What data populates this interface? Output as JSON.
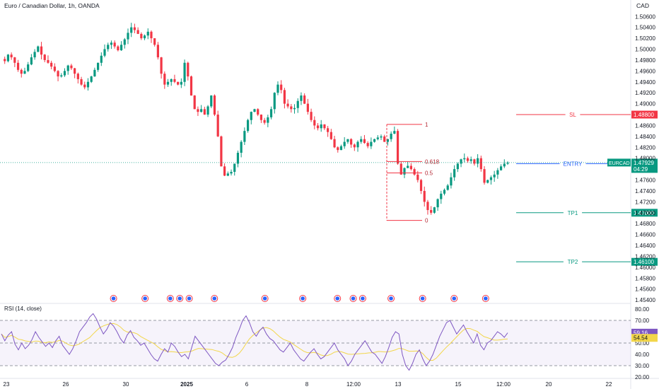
{
  "header": {
    "title": "Euro / Canadian Dollar, 1h, OANDA",
    "currency": "CAD"
  },
  "chart_data": {
    "type": "candlestick",
    "title": "Euro / Canadian Dollar, 1h, OANDA",
    "price_axis": {
      "ticks": [
        "1.50600",
        "1.50400",
        "1.50200",
        "1.50000",
        "1.49800",
        "1.49600",
        "1.49400",
        "1.49200",
        "1.49000",
        "1.48600",
        "1.48400",
        "1.48200",
        "1.48000",
        "1.47600",
        "1.47400",
        "1.47200",
        "1.47000",
        "1.46800",
        "1.46600",
        "1.46400",
        "1.46200",
        "1.46000",
        "1.45800",
        "1.45600",
        "1.45400"
      ],
      "range": [
        1.4535,
        1.5072
      ]
    },
    "time_axis": {
      "labels": [
        {
          "label": "23",
          "x": 0
        },
        {
          "label": "26",
          "x": 1
        },
        {
          "label": "30",
          "x": 2
        },
        {
          "label": "2025",
          "x": 3
        },
        {
          "label": "6",
          "x": 4
        },
        {
          "label": "8",
          "x": 5
        },
        {
          "label": "12:00",
          "x": 6
        },
        {
          "label": "13",
          "x": 7
        },
        {
          "label": "15",
          "x": 8
        },
        {
          "label": "12:00",
          "x": 9
        },
        {
          "label": "20",
          "x": 10
        },
        {
          "label": "22",
          "x": 11
        }
      ]
    },
    "price_path": [
      1.4982,
      1.4978,
      1.499,
      1.4985,
      1.4975,
      1.4962,
      1.4955,
      1.496,
      1.4972,
      1.4985,
      1.4995,
      1.5005,
      1.499,
      1.498,
      1.4975,
      1.4968,
      1.496,
      1.495,
      1.4952,
      1.496,
      1.497,
      1.4965,
      1.4955,
      1.4945,
      1.4935,
      1.493,
      1.494,
      1.495,
      1.4962,
      1.4975,
      1.4988,
      1.5,
      1.5008,
      1.5012,
      1.5005,
      1.4998,
      1.5008,
      1.5018,
      1.503,
      1.504,
      1.5035,
      1.5028,
      1.502,
      1.5025,
      1.5032,
      1.502,
      1.5008,
      1.4985,
      1.4955,
      1.4935,
      1.494,
      1.4945,
      1.494,
      1.4935,
      1.494,
      1.4975,
      1.495,
      1.4915,
      1.489,
      1.4885,
      1.489,
      1.488,
      1.4895,
      1.4915,
      1.488,
      1.484,
      1.4785,
      1.4768,
      1.4772,
      1.4775,
      1.479,
      1.481,
      1.483,
      1.485,
      1.487,
      1.4885,
      1.489,
      1.488,
      1.487,
      1.4865,
      1.4875,
      1.489,
      1.492,
      1.4935,
      1.4925,
      1.49,
      1.4895,
      1.489,
      1.4892,
      1.4905,
      1.4915,
      1.49,
      1.4885,
      1.487,
      1.486,
      1.4855,
      1.4862,
      1.4855,
      1.4848,
      1.4835,
      1.482,
      1.4815,
      1.4822,
      1.483,
      1.4835,
      1.4825,
      1.482,
      1.483,
      1.4835,
      1.4828,
      1.4822,
      1.483,
      1.4835,
      1.4838,
      1.484,
      1.483,
      1.4835,
      1.4845,
      1.485,
      1.479,
      1.477,
      1.4782,
      1.4786,
      1.478,
      1.477,
      1.476,
      1.474,
      1.472,
      1.4705,
      1.47,
      1.471,
      1.4725,
      1.4735,
      1.4742,
      1.475,
      1.4765,
      1.478,
      1.479,
      1.4798,
      1.48,
      1.4795,
      1.4798,
      1.479,
      1.48,
      1.478,
      1.4755,
      1.476,
      1.4765,
      1.477,
      1.4778,
      1.4785,
      1.479,
      1.4792
    ],
    "last_price": 1.4792,
    "fibonacci": [
      {
        "level": "1",
        "price": 1.4862
      },
      {
        "level": "0.618",
        "price": 1.4794
      },
      {
        "level": "0.5",
        "price": 1.4773
      },
      {
        "level": "0",
        "price": 1.4686
      }
    ],
    "levels": [
      {
        "name": "SL",
        "price": 1.488,
        "price_label": "1.48800",
        "color": "#f23645"
      },
      {
        "name": "ENTRY",
        "price": 1.479,
        "price_label": "1.47900",
        "color": "#2962ff"
      },
      {
        "name": "TP1",
        "price": 1.47,
        "price_label": "1.47000",
        "color": "#089981"
      },
      {
        "name": "TP2",
        "price": 1.461,
        "price_label": "1.46100",
        "color": "#089981"
      }
    ],
    "current_price_tag": {
      "symbol": "EURCAD",
      "price": "1.47929",
      "countdown": "04:29",
      "color": "#089981"
    },
    "rsi": {
      "title": "RSI (14, close)",
      "ticks": [
        "80.00",
        "70.00",
        "60.00",
        "50.00",
        "40.00",
        "30.00",
        "20.00"
      ],
      "range": [
        20,
        80
      ],
      "band_upper": 70,
      "band_lower": 30,
      "middle": 50,
      "value": "59.16",
      "ma_value": "54.54",
      "line_color": "#7e57c2",
      "ma_color": "#f2d64a",
      "values": [
        58,
        52,
        57,
        60,
        49,
        44,
        50,
        45,
        48,
        53,
        60,
        55,
        51,
        47,
        50,
        46,
        52,
        56,
        48,
        44,
        40,
        45,
        52,
        60,
        64,
        68,
        73,
        76,
        71,
        64,
        58,
        62,
        68,
        65,
        60,
        54,
        50,
        57,
        61,
        55,
        52,
        48,
        50,
        45,
        40,
        36,
        34,
        40,
        45,
        42,
        50,
        47,
        42,
        38,
        40,
        36,
        46,
        56,
        52,
        48,
        44,
        40,
        36,
        32,
        30,
        33,
        35,
        40,
        46,
        55,
        62,
        70,
        74,
        68,
        60,
        56,
        61,
        64,
        58,
        54,
        52,
        48,
        44,
        42,
        46,
        50,
        44,
        40,
        36,
        34,
        38,
        42,
        45,
        40,
        36,
        38,
        42,
        46,
        50,
        44,
        40,
        36,
        30,
        34,
        40,
        44,
        48,
        52,
        47,
        42,
        40,
        36,
        32,
        38,
        46,
        55,
        60,
        58,
        40,
        30,
        26,
        32,
        40,
        44,
        36,
        30,
        34,
        40,
        48,
        56,
        62,
        68,
        70,
        64,
        58,
        62,
        66,
        60,
        55,
        50,
        58,
        48,
        44,
        50,
        52,
        56,
        60,
        58,
        55,
        59
      ]
    },
    "event_markers": [
      0.18,
      0.23,
      0.27,
      0.285,
      0.3,
      0.34,
      0.42,
      0.48,
      0.535,
      0.56,
      0.575,
      0.62,
      0.67,
      0.72,
      0.77
    ]
  }
}
